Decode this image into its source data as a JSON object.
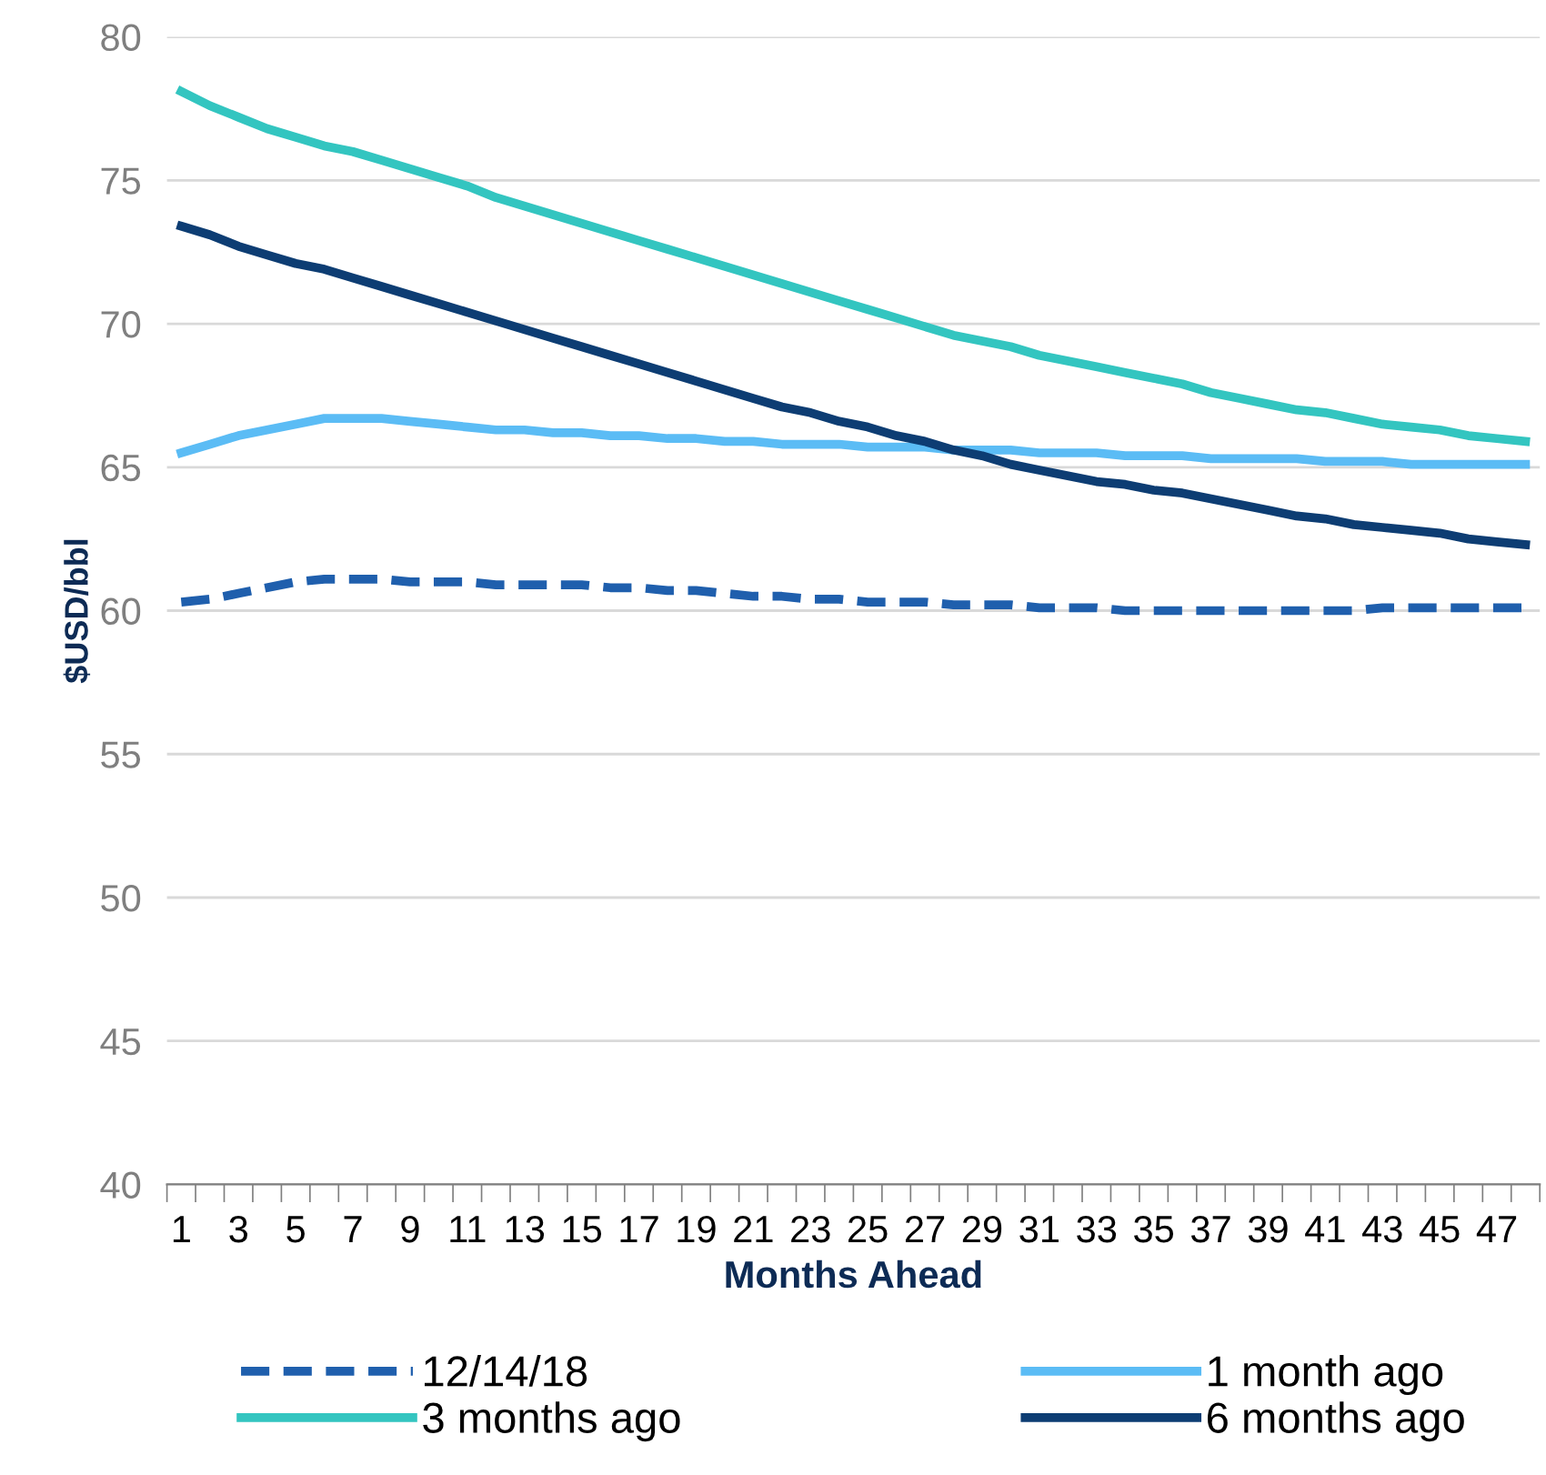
{
  "chart_data": {
    "type": "line",
    "xlabel": "Months Ahead",
    "ylabel": "$USD/bbl",
    "categories": [
      "1",
      null,
      "3",
      null,
      "5",
      null,
      "7",
      null,
      "9",
      null,
      "11",
      null,
      "13",
      null,
      "15",
      null,
      "17",
      null,
      "19",
      null,
      "21",
      null,
      "23",
      null,
      "25",
      null,
      "27",
      null,
      "29",
      null,
      "31",
      null,
      "33",
      null,
      "35",
      null,
      "37",
      null,
      "39",
      null,
      "41",
      null,
      "43",
      null,
      "45",
      null,
      "47",
      null
    ],
    "ylim": [
      40,
      80
    ],
    "yticks": [
      40,
      45,
      50,
      55,
      60,
      65,
      70,
      75,
      80
    ],
    "grid": "y",
    "legend": "bottom",
    "marker": "none",
    "series": [
      {
        "name": "12/14/18",
        "color": "#1f5fad",
        "line_style": "dashed",
        "values": [
          60.3,
          60.4,
          60.6,
          60.8,
          61.0,
          61.1,
          61.1,
          61.1,
          61.0,
          61.0,
          61.0,
          60.9,
          60.9,
          60.9,
          60.9,
          60.8,
          60.8,
          60.7,
          60.7,
          60.6,
          60.5,
          60.5,
          60.4,
          60.4,
          60.3,
          60.3,
          60.3,
          60.2,
          60.2,
          60.2,
          60.1,
          60.1,
          60.1,
          60.0,
          60.0,
          60.0,
          60.0,
          60.0,
          60.0,
          60.0,
          60.0,
          60.0,
          60.1,
          60.1,
          60.1,
          60.1,
          60.1,
          60.1
        ]
      },
      {
        "name": "1 month ago",
        "color": "#5bbcf5",
        "line_style": "solid",
        "values": [
          65.5,
          65.8,
          66.1,
          66.3,
          66.5,
          66.7,
          66.7,
          66.7,
          66.6,
          66.5,
          66.4,
          66.3,
          66.3,
          66.2,
          66.2,
          66.1,
          66.1,
          66.0,
          66.0,
          65.9,
          65.9,
          65.8,
          65.8,
          65.8,
          65.7,
          65.7,
          65.7,
          65.6,
          65.6,
          65.6,
          65.5,
          65.5,
          65.5,
          65.4,
          65.4,
          65.4,
          65.3,
          65.3,
          65.3,
          65.3,
          65.2,
          65.2,
          65.2,
          65.1,
          65.1,
          65.1,
          65.1,
          65.1
        ]
      },
      {
        "name": "3 months ago",
        "color": "#33c5c0",
        "line_style": "solid",
        "values": [
          78.1,
          77.6,
          77.2,
          76.8,
          76.5,
          76.2,
          76.0,
          75.7,
          75.4,
          75.1,
          74.8,
          74.4,
          74.1,
          73.8,
          73.5,
          73.2,
          72.9,
          72.6,
          72.3,
          72.0,
          71.7,
          71.4,
          71.1,
          70.8,
          70.5,
          70.2,
          69.9,
          69.6,
          69.4,
          69.2,
          68.9,
          68.7,
          68.5,
          68.3,
          68.1,
          67.9,
          67.6,
          67.4,
          67.2,
          67.0,
          66.9,
          66.7,
          66.5,
          66.4,
          66.3,
          66.1,
          66.0,
          65.9
        ]
      },
      {
        "name": "6 months ago",
        "color": "#0d3d73",
        "line_style": "solid",
        "values": [
          73.4,
          73.1,
          72.7,
          72.4,
          72.1,
          71.9,
          71.6,
          71.3,
          71.0,
          70.7,
          70.4,
          70.1,
          69.8,
          69.5,
          69.2,
          68.9,
          68.6,
          68.3,
          68.0,
          67.7,
          67.4,
          67.1,
          66.9,
          66.6,
          66.4,
          66.1,
          65.9,
          65.6,
          65.4,
          65.1,
          64.9,
          64.7,
          64.5,
          64.4,
          64.2,
          64.1,
          63.9,
          63.7,
          63.5,
          63.3,
          63.2,
          63.0,
          62.9,
          62.8,
          62.7,
          62.5,
          62.4,
          62.3
        ]
      }
    ]
  }
}
